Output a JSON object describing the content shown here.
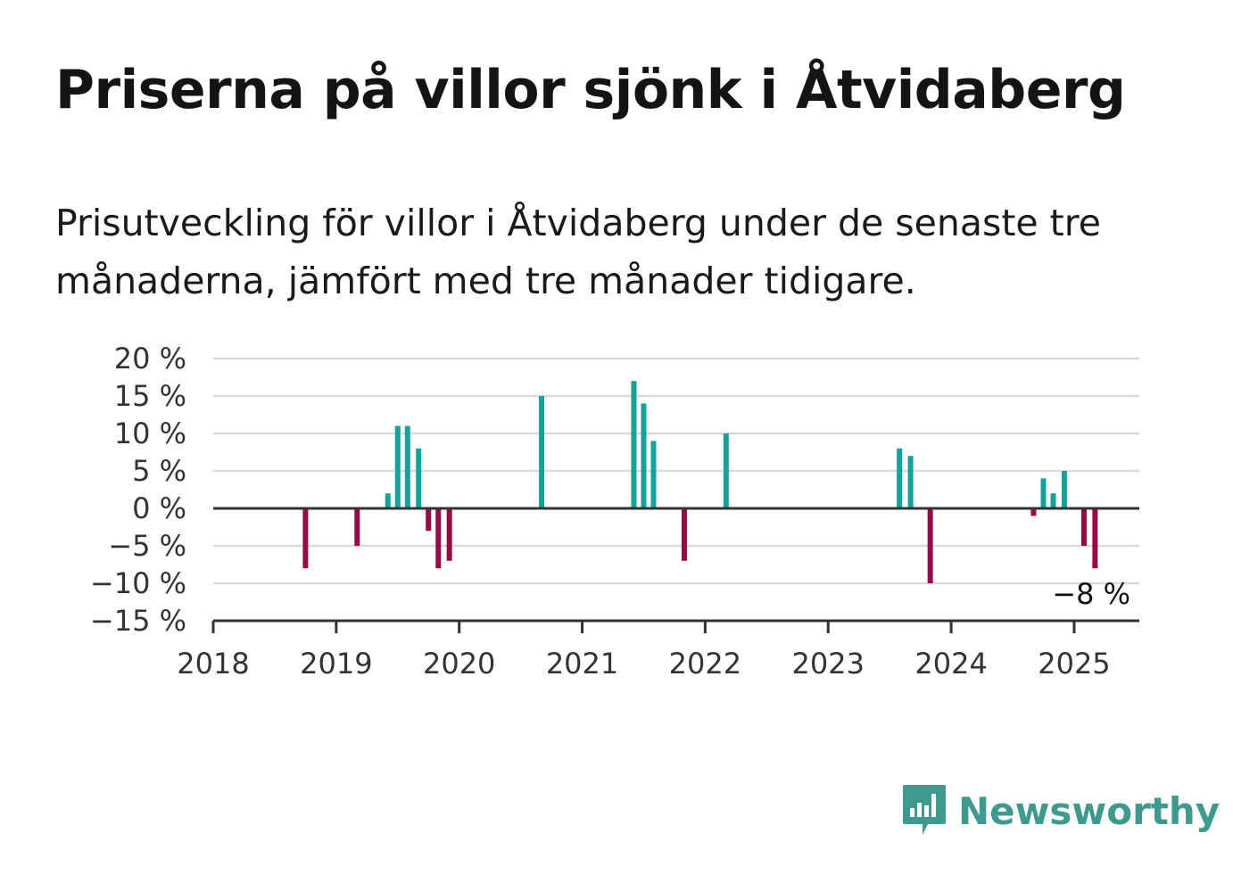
{
  "title": "Priserna på villor sjönk i Åtvidaberg",
  "subtitle": "Prisutveckling för villor i Åtvidaberg under de senaste tre månaderna, jämfört med tre månader tidigare.",
  "brand": {
    "name": "Newsworthy",
    "icon": "newsworthy-logo-icon",
    "color": "#3e9a8f"
  },
  "colors": {
    "positive": "#13a39a",
    "negative": "#950b47",
    "grid": "#d9d9d9",
    "axis": "#333333"
  },
  "chart_data": {
    "type": "bar",
    "title": "",
    "xlabel": "",
    "ylabel": "",
    "ylim": [
      -15,
      20
    ],
    "xlim": [
      2018.0,
      2025.53
    ],
    "y_ticks": [
      -15,
      -10,
      -5,
      0,
      5,
      10,
      15,
      20
    ],
    "y_tick_labels": [
      "−15 %",
      "−10 %",
      "−5 %",
      "0 %",
      "5 %",
      "10 %",
      "15 %",
      "20 %"
    ],
    "x_ticks": [
      2018,
      2019,
      2020,
      2021,
      2022,
      2023,
      2024,
      2025
    ],
    "x_tick_labels": [
      "2018",
      "2019",
      "2020",
      "2021",
      "2022",
      "2023",
      "2024",
      "2025"
    ],
    "grid": true,
    "annotation": "−8 %",
    "points": [
      {
        "x": 2018.75,
        "value": -8
      },
      {
        "x": 2019.17,
        "value": -5
      },
      {
        "x": 2019.42,
        "value": 2
      },
      {
        "x": 2019.5,
        "value": 11
      },
      {
        "x": 2019.58,
        "value": 11
      },
      {
        "x": 2019.67,
        "value": 8
      },
      {
        "x": 2019.75,
        "value": -3
      },
      {
        "x": 2019.83,
        "value": -8
      },
      {
        "x": 2019.92,
        "value": -7
      },
      {
        "x": 2020.67,
        "value": 15
      },
      {
        "x": 2021.42,
        "value": 17
      },
      {
        "x": 2021.5,
        "value": 14
      },
      {
        "x": 2021.58,
        "value": 9
      },
      {
        "x": 2021.83,
        "value": -7
      },
      {
        "x": 2022.17,
        "value": 10
      },
      {
        "x": 2023.58,
        "value": 8
      },
      {
        "x": 2023.67,
        "value": 7
      },
      {
        "x": 2023.83,
        "value": -10
      },
      {
        "x": 2024.67,
        "value": -1
      },
      {
        "x": 2024.75,
        "value": 4
      },
      {
        "x": 2024.83,
        "value": 2
      },
      {
        "x": 2024.92,
        "value": 5
      },
      {
        "x": 2025.08,
        "value": -5
      },
      {
        "x": 2025.17,
        "value": -8
      }
    ]
  }
}
